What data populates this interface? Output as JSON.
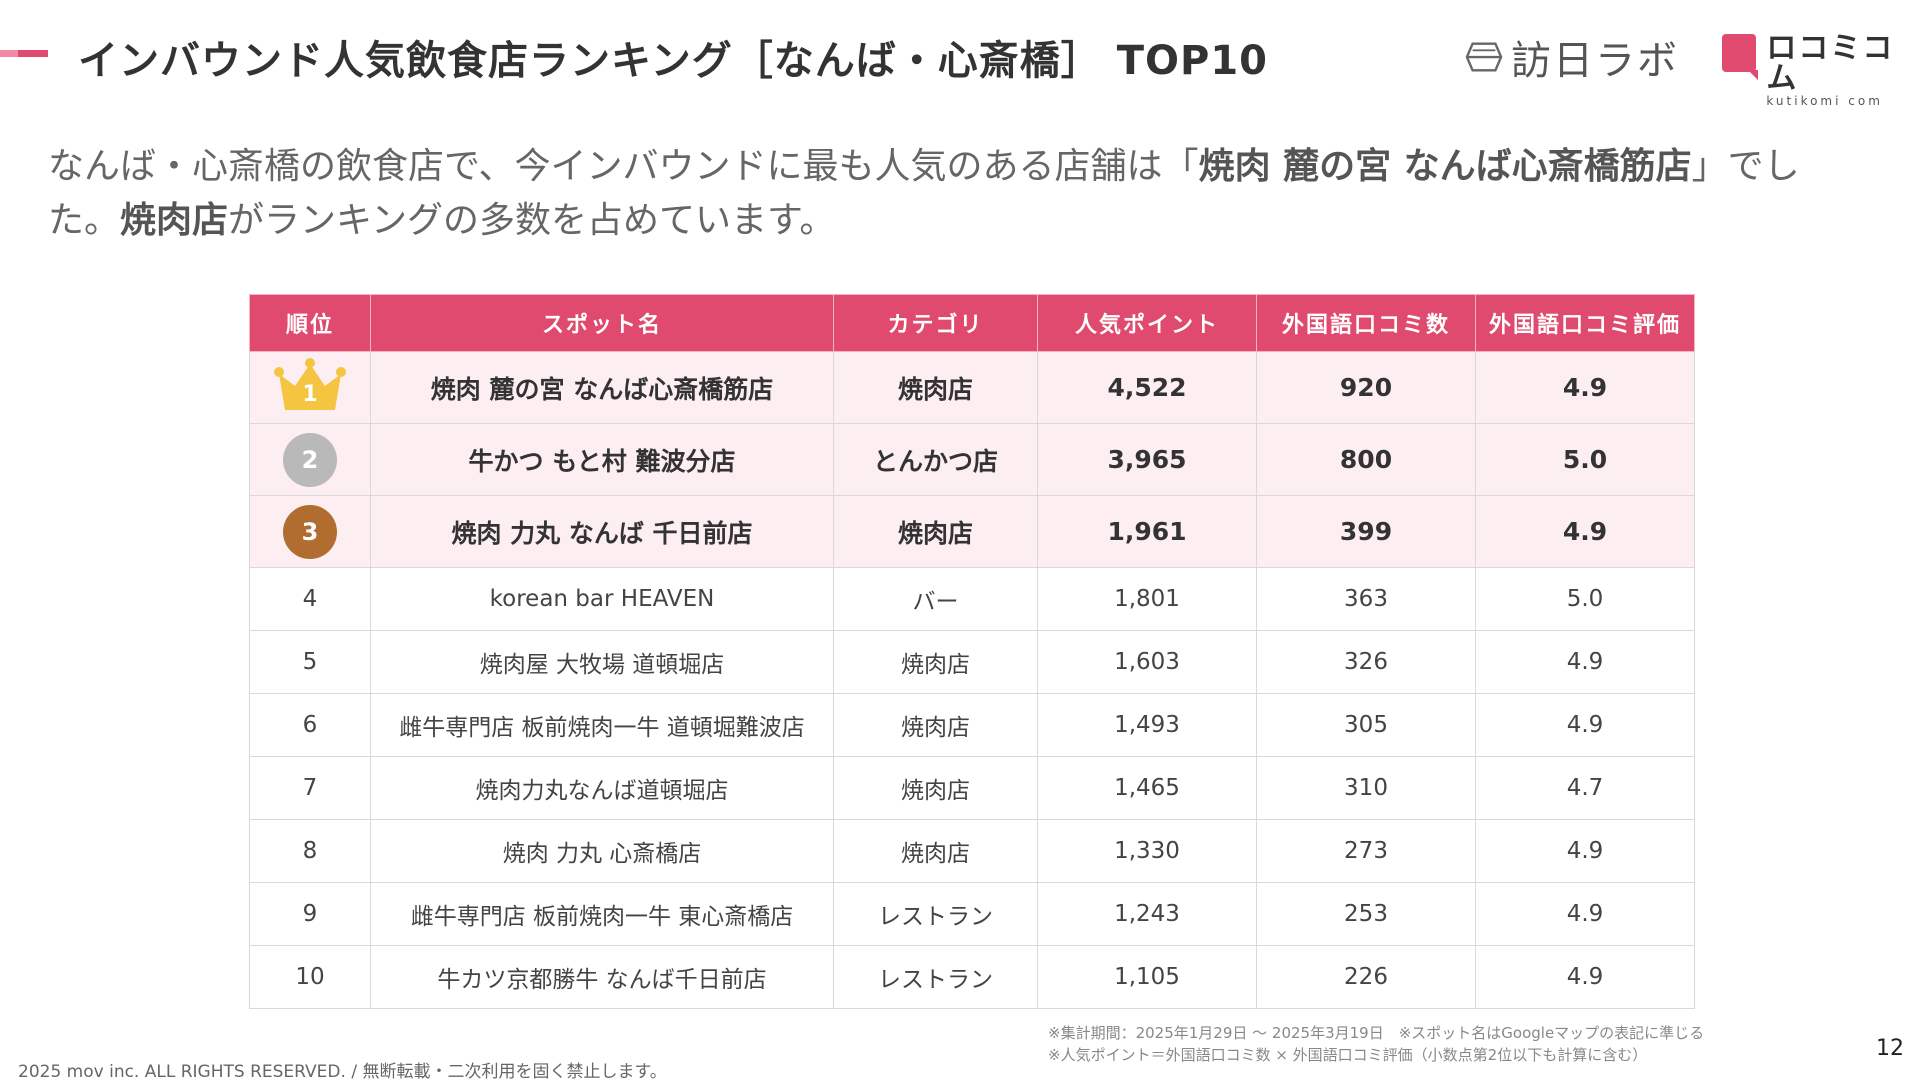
{
  "header": {
    "title": "インバウンド人気飲食店ランキング［なんば・心斎橋］ TOP10",
    "logo_houjin_text": "訪日ラボ",
    "logo_kuti_text": "ロコミコム",
    "logo_kuti_sub": "kutikomi com"
  },
  "lead": {
    "part1": "なんば・心斎橋の飲食店で、今インバウンドに最も人気のある店舗は「",
    "highlight1": "焼肉 麓の宮 なんば心斎橋筋店",
    "part2": "」でした。",
    "highlight2": "焼肉店",
    "part3": "がランキングの多数を占めています。"
  },
  "table": {
    "headers": [
      "順位",
      "スポット名",
      "カテゴリ",
      "人気ポイント",
      "外国語口コミ数",
      "外国語口コミ評価"
    ],
    "rows": [
      {
        "rank": "1",
        "name": "焼肉 麓の宮 なんば心斎橋筋店",
        "category": "焼肉店",
        "points": "4,522",
        "reviews": "920",
        "rating": "4.9"
      },
      {
        "rank": "2",
        "name": "牛かつ もと村 難波分店",
        "category": "とんかつ店",
        "points": "3,965",
        "reviews": "800",
        "rating": "5.0"
      },
      {
        "rank": "3",
        "name": "焼肉 力丸 なんば 千日前店",
        "category": "焼肉店",
        "points": "1,961",
        "reviews": "399",
        "rating": "4.9"
      },
      {
        "rank": "4",
        "name": "korean bar HEAVEN",
        "category": "バー",
        "points": "1,801",
        "reviews": "363",
        "rating": "5.0"
      },
      {
        "rank": "5",
        "name": "焼肉屋 大牧場 道頓堀店",
        "category": "焼肉店",
        "points": "1,603",
        "reviews": "326",
        "rating": "4.9"
      },
      {
        "rank": "6",
        "name": "雌牛専門店 板前焼肉一牛 道頓堀難波店",
        "category": "焼肉店",
        "points": "1,493",
        "reviews": "305",
        "rating": "4.9"
      },
      {
        "rank": "7",
        "name": "焼肉力丸なんば道頓堀店",
        "category": "焼肉店",
        "points": "1,465",
        "reviews": "310",
        "rating": "4.7"
      },
      {
        "rank": "8",
        "name": "焼肉 力丸 心斎橋店",
        "category": "焼肉店",
        "points": "1,330",
        "reviews": "273",
        "rating": "4.9"
      },
      {
        "rank": "9",
        "name": "雌牛専門店 板前焼肉一牛 東心斎橋店",
        "category": "レストラン",
        "points": "1,243",
        "reviews": "253",
        "rating": "4.9"
      },
      {
        "rank": "10",
        "name": "牛カツ京都勝牛 なんば千日前店",
        "category": "レストラン",
        "points": "1,105",
        "reviews": "226",
        "rating": "4.9"
      }
    ]
  },
  "notes": {
    "line1": "※集計期間：2025年1月29日 〜 2025年3月19日　※スポット名はGoogleマップの表記に準じる",
    "line2": "※人気ポイント＝外国語口コミ数 × 外国語口コミ評価（小数点第2位以下も計算に含む）"
  },
  "footer": {
    "copyright": "2025 mov inc. ALL RIGHTS RESERVED. / 無断転載・二次利用を固く禁止します。",
    "page_number": "12"
  },
  "colors": {
    "accent": "#e04a6e",
    "highlight_row": "#fdeef2",
    "gold": "#f5c542",
    "silver": "#b9b9b9",
    "bronze": "#b06d2f"
  }
}
